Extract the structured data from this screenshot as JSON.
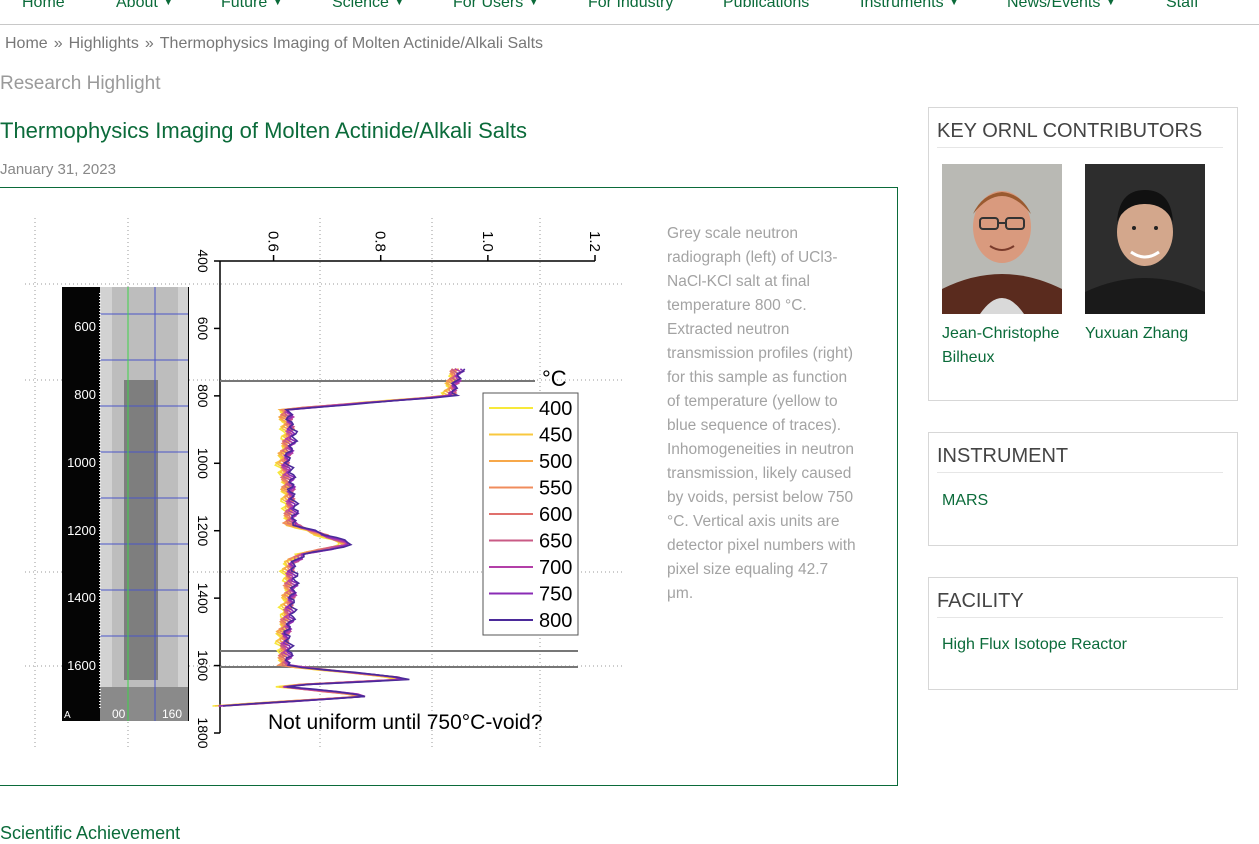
{
  "nav": {
    "items": [
      {
        "label": "Home",
        "caret": false
      },
      {
        "label": "About",
        "caret": true
      },
      {
        "label": "Future",
        "caret": true
      },
      {
        "label": "Science",
        "caret": true
      },
      {
        "label": "For Users",
        "caret": true
      },
      {
        "label": "For Industry",
        "caret": false
      },
      {
        "label": "Publications",
        "caret": false
      },
      {
        "label": "Instruments",
        "caret": true
      },
      {
        "label": "News/Events",
        "caret": true
      },
      {
        "label": "Staff",
        "caret": false
      }
    ]
  },
  "breadcrumb": {
    "home": "Home",
    "highlights": "Highlights",
    "current": "Thermophysics Imaging of Molten Actinide/Alkali Salts",
    "separator": "»"
  },
  "article": {
    "kicker": "Research Highlight",
    "title": "Thermophysics Imaging of Molten Actinide/Alkali Salts",
    "date": "January 31, 2023",
    "caption": "Grey scale neutron radiograph (left) of UCl3-NaCl-KCl salt at final temperature 800 °C. Extracted neutron transmission profiles (right) for this sample as function of temperature (yellow to blue sequence of traces). Inhomogeneities in neutron transmission, likely caused by voids, persist below 750 °C. Vertical axis units are detector pixel numbers with pixel size equaling 42.7 μm.",
    "next_heading": "Scientific Achievement"
  },
  "figure": {
    "radiograph_ticks": [
      "600",
      "800",
      "1000",
      "1200",
      "1400",
      "1600"
    ],
    "radiograph_xticks": [
      "00",
      "160"
    ],
    "radiograph_corner": "A",
    "annotation": "Not uniform until 750°C-void?",
    "legend_title": "°C"
  },
  "chart_data": {
    "type": "line",
    "orientation": "vertical-profile",
    "x_axis": {
      "ticks": [
        0.6,
        0.8,
        1.0,
        1.2
      ],
      "range": [
        0.5,
        1.2
      ],
      "label": ""
    },
    "y_axis": {
      "ticks": [
        400,
        600,
        800,
        1000,
        1200,
        1400,
        1600,
        1800
      ],
      "range": [
        400,
        1800
      ],
      "inverted": true,
      "label": ""
    },
    "legend_title": "°C",
    "series": [
      {
        "name": "400",
        "color": "#f7e93a"
      },
      {
        "name": "450",
        "color": "#f8c83f"
      },
      {
        "name": "500",
        "color": "#f7a84a"
      },
      {
        "name": "550",
        "color": "#f08c5c"
      },
      {
        "name": "600",
        "color": "#e0706c"
      },
      {
        "name": "650",
        "color": "#c95a85"
      },
      {
        "name": "700",
        "color": "#b33fa8"
      },
      {
        "name": "750",
        "color": "#8a2bb5"
      },
      {
        "name": "800",
        "color": "#4b2a9a"
      }
    ],
    "profile": {
      "y": [
        720,
        800,
        840,
        900,
        1000,
        1100,
        1180,
        1200,
        1240,
        1270,
        1300,
        1400,
        1500,
        1600,
        1640,
        1660,
        1690,
        1720
      ],
      "x": [
        0.94,
        0.93,
        0.62,
        0.63,
        0.62,
        0.63,
        0.63,
        0.67,
        0.74,
        0.65,
        0.63,
        0.63,
        0.62,
        0.62,
        0.86,
        0.6,
        0.78,
        0.5
      ]
    }
  },
  "sidebar": {
    "contributors": {
      "heading": "KEY ORNL CONTRIBUTORS",
      "people": [
        {
          "name": "Jean-Christophe Bilheux"
        },
        {
          "name": "Yuxuan Zhang"
        }
      ]
    },
    "instrument": {
      "heading": "INSTRUMENT",
      "link": "MARS"
    },
    "facility": {
      "heading": "FACILITY",
      "link": "High Flux Isotope Reactor"
    }
  }
}
